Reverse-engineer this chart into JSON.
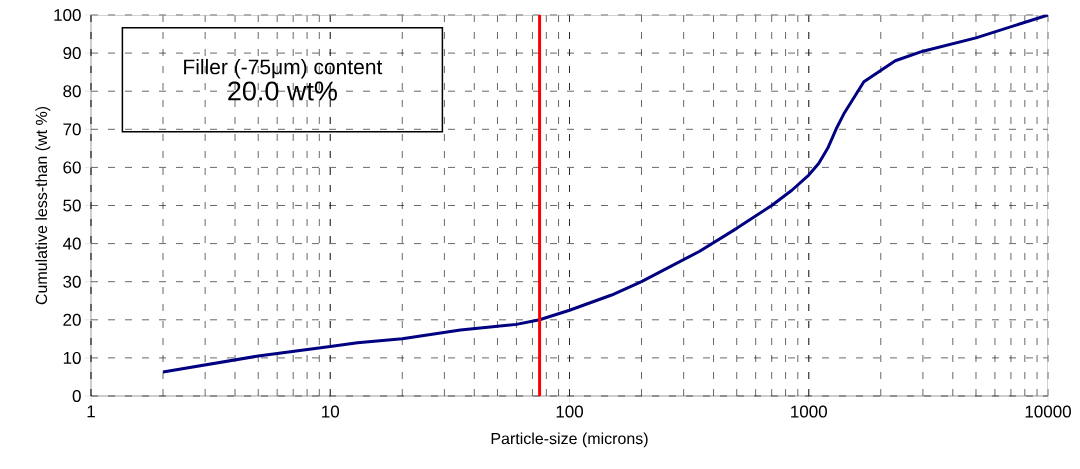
{
  "chart_data": {
    "type": "line",
    "xlabel": "Particle-size (microns)",
    "ylabel": "Cumulative less-than (wt %)",
    "annotations": [
      "Filler (-75μm) content",
      "20.0 wt%"
    ],
    "log": "x",
    "grid": true,
    "marker": "none",
    "line_style": "solid",
    "xlim": [
      1,
      10000
    ],
    "xticks": [
      1,
      10,
      100,
      1000,
      10000
    ],
    "ylim": [
      0,
      100
    ],
    "yticks": [
      0,
      10,
      20,
      30,
      40,
      50,
      60,
      70,
      80,
      90,
      100
    ],
    "ref_lines": [
      {
        "axis": "x",
        "value": 75,
        "color": "#ff0000"
      }
    ],
    "series": [
      {
        "color": "#000080",
        "x": [
          2,
          5,
          10,
          13,
          20,
          35,
          60,
          75,
          100,
          150,
          200,
          350,
          500,
          700,
          850,
          1000,
          1100,
          1200,
          1300,
          1400,
          1700,
          2300,
          3000,
          5000,
          10000
        ],
        "values": [
          6.3,
          10.5,
          13,
          14,
          15,
          17.3,
          18.8,
          20,
          22.5,
          26.5,
          30,
          38,
          44,
          50,
          54,
          58,
          61,
          65,
          70,
          74,
          82.5,
          88,
          90.5,
          94,
          100
        ]
      }
    ]
  }
}
